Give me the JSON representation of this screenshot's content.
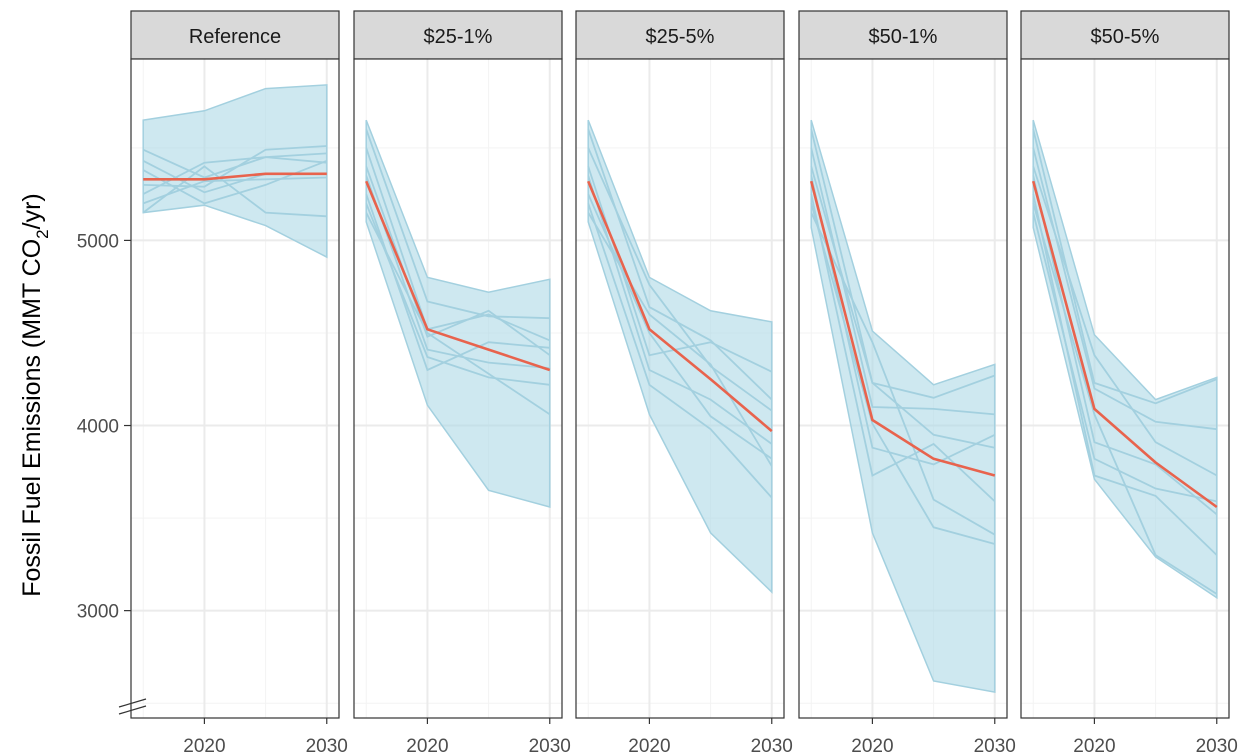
{
  "chart_data": {
    "type": "line",
    "ylabel": "Fossil Fuel Emissions (MMT CO",
    "ylabel_sub": "2",
    "ylabel_tail": "/yr)",
    "xlim": [
      2014,
      2031
    ],
    "ylim": [
      2420,
      5980
    ],
    "x_ticks": [
      2020,
      2030
    ],
    "x_tick_labels": [
      "2020",
      "2030"
    ],
    "y_ticks": [
      3000,
      4000,
      5000
    ],
    "y_tick_labels": [
      "3000",
      "4000",
      "5000"
    ],
    "axis_break": true,
    "grid": true,
    "x": [
      2015,
      2020,
      2025,
      2030
    ],
    "colors": {
      "band": "#add8e6",
      "member_line": "#a3d0df",
      "reference_line": "#e8634d",
      "strip_fill": "#d9d9d9",
      "grid": "#ebebeb"
    },
    "panels": [
      {
        "title": "Reference",
        "band_upper": [
          5650,
          5700,
          5820,
          5840
        ],
        "band_lower": [
          5150,
          5190,
          5080,
          4910
        ],
        "central": [
          5330,
          5330,
          5360,
          5360
        ],
        "members": [
          [
            5490,
            5340,
            5450,
            5470
          ],
          [
            5430,
            5260,
            5360,
            5360
          ],
          [
            5380,
            5200,
            5300,
            5430
          ],
          [
            5300,
            5290,
            5490,
            5510
          ],
          [
            5250,
            5420,
            5450,
            5420
          ],
          [
            5200,
            5320,
            5330,
            5340
          ],
          [
            5150,
            5400,
            5150,
            5130
          ]
        ]
      },
      {
        "title": "$25-1%",
        "band_upper": [
          5650,
          4800,
          4720,
          4790
        ],
        "band_lower": [
          5100,
          4110,
          3650,
          3560
        ],
        "central": [
          5320,
          4520,
          4410,
          4300
        ],
        "members": [
          [
            5600,
            4670,
            4590,
            4580
          ],
          [
            5500,
            4520,
            4600,
            4460
          ],
          [
            5400,
            4480,
            4620,
            4380
          ],
          [
            5350,
            4410,
            4340,
            4310
          ],
          [
            5250,
            4300,
            4450,
            4420
          ],
          [
            5200,
            4370,
            4260,
            4220
          ],
          [
            5150,
            4500,
            4280,
            4060
          ]
        ]
      },
      {
        "title": "$25-5%",
        "band_upper": [
          5650,
          4800,
          4620,
          4560
        ],
        "band_lower": [
          5100,
          4060,
          3420,
          3100
        ],
        "central": [
          5320,
          4520,
          4250,
          3970
        ],
        "members": [
          [
            5600,
            4640,
            4460,
            4140
          ],
          [
            5500,
            4760,
            4320,
            4080
          ],
          [
            5400,
            4380,
            4450,
            4290
          ],
          [
            5350,
            4300,
            4140,
            3900
          ],
          [
            5250,
            4500,
            4050,
            3820
          ],
          [
            5200,
            4220,
            3980,
            3610
          ],
          [
            5150,
            4600,
            4330,
            3780
          ]
        ]
      },
      {
        "title": "$50-1%",
        "band_upper": [
          5650,
          4510,
          4220,
          4330
        ],
        "band_lower": [
          5070,
          3420,
          2620,
          2560
        ],
        "central": [
          5320,
          4030,
          3820,
          3730
        ],
        "members": [
          [
            5600,
            4230,
            4150,
            4270
          ],
          [
            5500,
            4100,
            4090,
            4060
          ],
          [
            5400,
            4230,
            3950,
            3880
          ],
          [
            5350,
            3880,
            3790,
            3950
          ],
          [
            5250,
            3730,
            3900,
            3590
          ],
          [
            5200,
            4010,
            3450,
            3360
          ],
          [
            5150,
            4450,
            3600,
            3410
          ]
        ]
      },
      {
        "title": "$50-5%",
        "band_upper": [
          5650,
          4490,
          4140,
          4260
        ],
        "band_lower": [
          5070,
          3710,
          3290,
          3070
        ],
        "central": [
          5320,
          4090,
          3800,
          3560
        ],
        "members": [
          [
            5600,
            4230,
            4120,
            4250
          ],
          [
            5500,
            4200,
            4020,
            3980
          ],
          [
            5400,
            4380,
            3910,
            3730
          ],
          [
            5350,
            3910,
            3790,
            3520
          ],
          [
            5250,
            3730,
            3620,
            3300
          ],
          [
            5200,
            4060,
            3300,
            3090
          ],
          [
            5150,
            3820,
            3660,
            3590
          ]
        ]
      }
    ]
  }
}
